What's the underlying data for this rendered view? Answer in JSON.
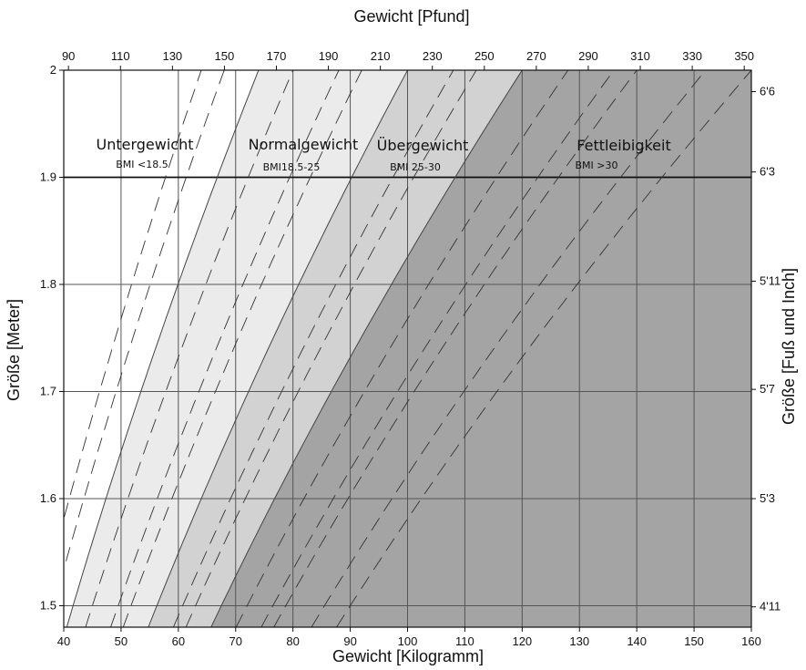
{
  "chart_data": {
    "type": "area",
    "xlabel": "Gewicht [Kilogramm]",
    "x2label": "Gewicht [Pfund]",
    "ylabel": "Größe [Meter]",
    "y2label": "Größe [Fuß und Inch]",
    "xlim": [
      40,
      160
    ],
    "ylim": [
      1.48,
      2.0
    ],
    "x_ticks": [
      40,
      50,
      60,
      70,
      80,
      90,
      100,
      110,
      120,
      130,
      140,
      150,
      160
    ],
    "x_tick_labels": [
      "40",
      "50",
      "60",
      "70",
      "80",
      "90",
      "100",
      "110",
      "120",
      "130",
      "140",
      "150",
      "160"
    ],
    "y_ticks": [
      1.5,
      1.6,
      1.7,
      1.8,
      1.9,
      2.0
    ],
    "y_tick_labels": [
      "1.5",
      "1.6",
      "1.7",
      "1.8",
      "1.9",
      "2"
    ],
    "x2_ticks": [
      90,
      110,
      130,
      150,
      170,
      190,
      210,
      230,
      250,
      270,
      290,
      310,
      330,
      350
    ],
    "x2_tick_labels": [
      "90",
      "110",
      "130",
      "150",
      "170",
      "190",
      "210",
      "230",
      "250",
      "270",
      "290",
      "310",
      "330",
      "350"
    ],
    "y2_ticks": [
      "6'6",
      "6'3",
      "5'11",
      "5'7",
      "5'3",
      "4'11"
    ],
    "y2_tick_values_m": [
      1.98,
      1.905,
      1.803,
      1.702,
      1.6,
      1.499
    ],
    "zones": [
      {
        "name": "Untergewicht",
        "label": "BMI <18.5",
        "bmi_min": 0,
        "bmi_max": 18.5,
        "color": "#ffffff"
      },
      {
        "name": "Normalgewicht",
        "label": "BMI18.5-25",
        "bmi_min": 18.5,
        "bmi_max": 25,
        "color": "#ebebeb"
      },
      {
        "name": "Übergewicht",
        "label": "BMI 25-30",
        "bmi_min": 25,
        "bmi_max": 30,
        "color": "#d2d2d2"
      },
      {
        "name": "Fettleibigkeit",
        "label": "BMI >30",
        "bmi_min": 30,
        "bmi_max": 100,
        "color": "#a4a4a4"
      }
    ],
    "boundary_bmi": [
      18.5,
      25,
      30
    ],
    "reference_bmi_lines": [
      16,
      17,
      20,
      22,
      23,
      27,
      28,
      32,
      34,
      35,
      38,
      40
    ],
    "grid": true,
    "legend": "none"
  }
}
